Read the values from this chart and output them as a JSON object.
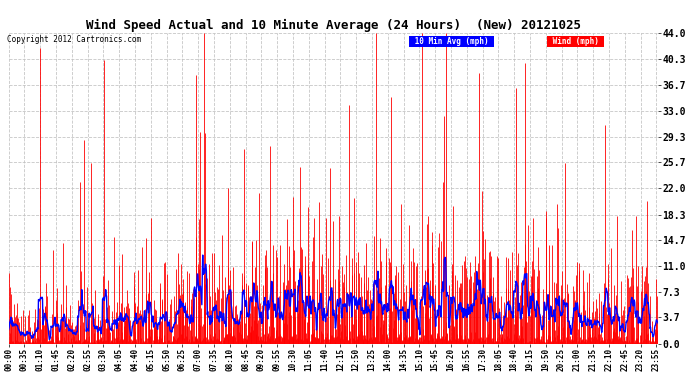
{
  "title": "Wind Speed Actual and 10 Minute Average (24 Hours)  (New) 20121025",
  "copyright": "Copyright 2012 Cartronics.com",
  "legend_avg": "10 Min Avg (mph)",
  "legend_wind": "Wind (mph)",
  "yticks": [
    0.0,
    3.7,
    7.3,
    11.0,
    14.7,
    18.3,
    22.0,
    25.7,
    29.3,
    33.0,
    36.7,
    40.3,
    44.0
  ],
  "ymin": 0.0,
  "ymax": 44.0,
  "wind_color": "#ff0000",
  "avg_color": "#0000ff",
  "bg_color": "#ffffff",
  "grid_color": "#c0c0c0",
  "legend_avg_bg": "#0000ff",
  "legend_wind_bg": "#ff0000",
  "legend_text_color": "#ffffff",
  "tick_interval_minutes": 35,
  "n_points": 1440,
  "avg_window": 10,
  "figwidth": 6.9,
  "figheight": 3.75,
  "dpi": 100
}
